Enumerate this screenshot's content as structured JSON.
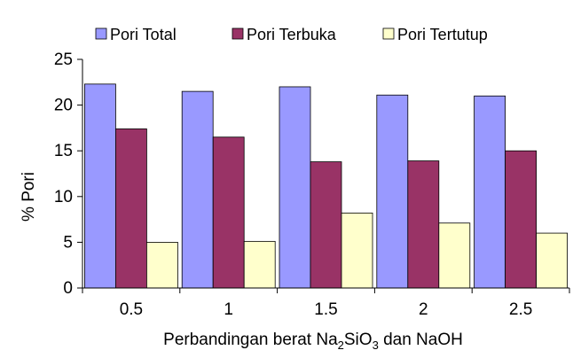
{
  "chart_data": {
    "type": "bar",
    "categories": [
      "0.5",
      "1",
      "1.5",
      "2",
      "2.5"
    ],
    "series": [
      {
        "name": "Pori Total",
        "values": [
          22.3,
          21.5,
          22.0,
          21.1,
          21.0
        ],
        "color": "#9999ff"
      },
      {
        "name": "Pori Terbuka",
        "values": [
          17.4,
          16.5,
          13.8,
          13.9,
          15.0
        ],
        "color": "#993366"
      },
      {
        "name": "Pori Tertutup",
        "values": [
          5.0,
          5.1,
          8.2,
          7.1,
          6.0
        ],
        "color": "#ffffcc"
      }
    ],
    "ylabel": "% Pori",
    "xlabel": {
      "pre": "Perbandingan berat Na",
      "sub1": "2",
      "mid": "SiO",
      "sub2": "3",
      "post": " dan NaOH"
    },
    "ylim": [
      0,
      25
    ],
    "yticks": [
      0,
      5,
      10,
      15,
      20,
      25
    ],
    "legend_position": "top",
    "grid": false
  }
}
